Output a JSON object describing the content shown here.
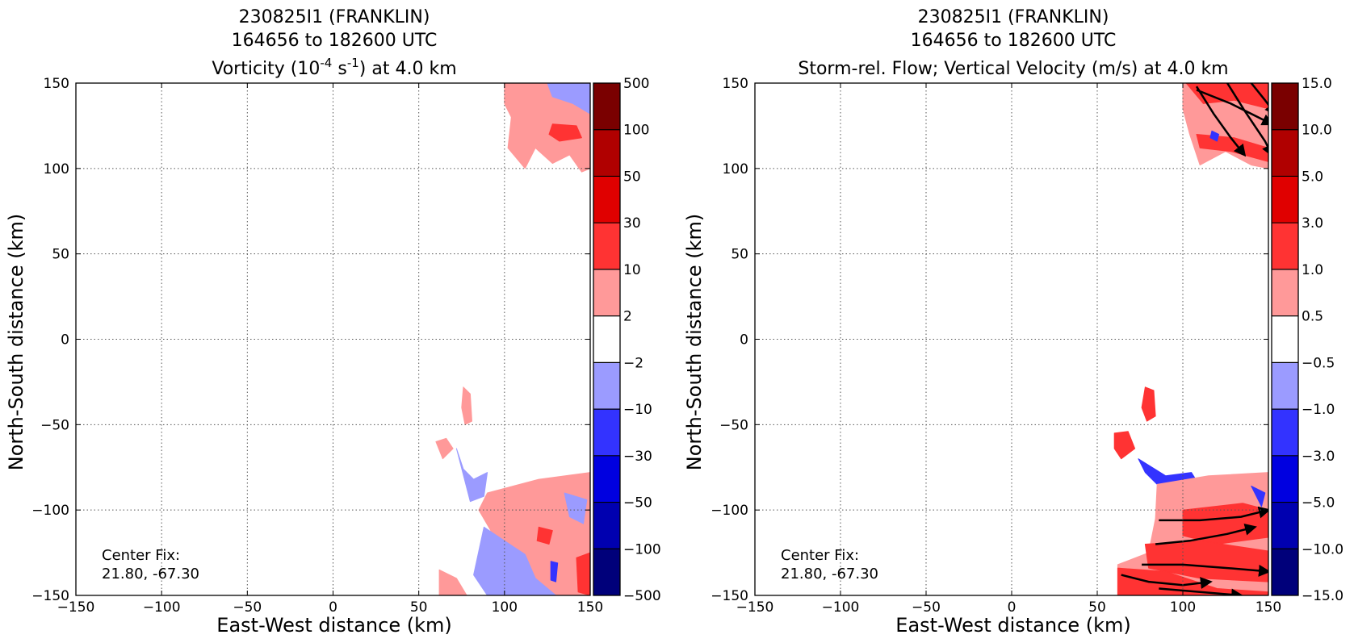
{
  "chart_data": [
    {
      "type": "heatmap",
      "title_lines": [
        "230825I1 (FRANKLIN)",
        "164656 to 182600 UTC"
      ],
      "title_var": {
        "pre": "Vorticity (10",
        "sup1": "-4",
        "mid": " s",
        "sup2": "-1",
        "post": ") at 4.0 km"
      },
      "xlabel": "East-West distance (km)",
      "ylabel": "North-South distance (km)",
      "xlim": [
        -150,
        150
      ],
      "ylim": [
        -150,
        150
      ],
      "xticks": [
        "−150",
        "−100",
        "−50",
        "0",
        "50",
        "100",
        "150"
      ],
      "yticks": [
        "150",
        "100",
        "50",
        "0",
        "−50",
        "−100",
        "−150"
      ],
      "grid": true,
      "annotation": [
        "Center Fix:",
        "21.80, -67.30"
      ],
      "colorbar_labels": [
        "500",
        "100",
        "50",
        "30",
        "10",
        "2",
        "−2",
        "−10",
        "−30",
        "−50",
        "−100",
        "−500"
      ],
      "colorbar_colors": [
        "#7a0000",
        "#b00000",
        "#e00000",
        "#ff3333",
        "#ff9999",
        "#ffffff",
        "#9b9bff",
        "#3333ff",
        "#0000e0",
        "#0000b0",
        "#00007a"
      ],
      "regions": [
        {
          "level": "pos_light",
          "pts": [
            [
              100,
              150
            ],
            [
              150,
              150
            ],
            [
              150,
              100
            ],
            [
              145,
              98
            ],
            [
              138,
              108
            ],
            [
              128,
              103
            ],
            [
              118,
              112
            ],
            [
              112,
              100
            ],
            [
              102,
              112
            ],
            [
              104,
              130
            ],
            [
              100,
              138
            ]
          ]
        },
        {
          "level": "neg_light",
          "pts": [
            [
              125,
              150
            ],
            [
              150,
              150
            ],
            [
              150,
              132
            ],
            [
              140,
              138
            ],
            [
              128,
              142
            ]
          ]
        },
        {
          "level": "pos_mid",
          "pts": [
            [
              128,
              126
            ],
            [
              142,
              125
            ],
            [
              145,
              118
            ],
            [
              132,
              116
            ],
            [
              126,
              120
            ]
          ]
        },
        {
          "level": "pos_light",
          "pts": [
            [
              76,
              -28
            ],
            [
              80,
              -32
            ],
            [
              81,
              -48
            ],
            [
              77,
              -50
            ],
            [
              75,
              -40
            ]
          ]
        },
        {
          "level": "pos_light",
          "pts": [
            [
              60,
              -60
            ],
            [
              66,
              -58
            ],
            [
              70,
              -64
            ],
            [
              64,
              -70
            ]
          ]
        },
        {
          "level": "pos_light",
          "pts": [
            [
              90,
              -90
            ],
            [
              120,
              -82
            ],
            [
              150,
              -78
            ],
            [
              150,
              -150
            ],
            [
              95,
              -150
            ],
            [
              88,
              -130
            ],
            [
              92,
              -112
            ],
            [
              85,
              -100
            ]
          ]
        },
        {
          "level": "neg_light",
          "pts": [
            [
              72,
              -64
            ],
            [
              76,
              -76
            ],
            [
              82,
              -82
            ],
            [
              90,
              -78
            ],
            [
              88,
              -92
            ],
            [
              80,
              -95
            ]
          ]
        },
        {
          "level": "neg_light",
          "pts": [
            [
              88,
              -110
            ],
            [
              100,
              -118
            ],
            [
              112,
              -126
            ],
            [
              118,
              -140
            ],
            [
              130,
              -150
            ],
            [
              90,
              -150
            ],
            [
              82,
              -138
            ]
          ]
        },
        {
          "level": "neg_light",
          "pts": [
            [
              135,
              -90
            ],
            [
              148,
              -94
            ],
            [
              146,
              -108
            ],
            [
              138,
              -104
            ]
          ]
        },
        {
          "level": "pos_light",
          "pts": [
            [
              62,
              -135
            ],
            [
              72,
              -140
            ],
            [
              78,
              -150
            ],
            [
              62,
              -150
            ]
          ]
        },
        {
          "level": "pos_mid",
          "pts": [
            [
              120,
              -110
            ],
            [
              128,
              -112
            ],
            [
              126,
              -120
            ],
            [
              119,
              -118
            ]
          ]
        },
        {
          "level": "pos_mid",
          "pts": [
            [
              142,
              -128
            ],
            [
              150,
              -125
            ],
            [
              150,
              -150
            ],
            [
              143,
              -148
            ]
          ]
        },
        {
          "level": "neg_mid",
          "pts": [
            [
              127,
              -130
            ],
            [
              131,
              -131
            ],
            [
              130,
              -142
            ],
            [
              127,
              -141
            ]
          ]
        }
      ]
    },
    {
      "type": "heatmap",
      "title_lines": [
        "230825I1 (FRANKLIN)",
        "164656 to 182600 UTC",
        "Storm-rel. Flow; Vertical Velocity (m/s) at 4.0 km"
      ],
      "xlabel": "East-West distance (km)",
      "ylabel": "North-South distance (km)",
      "xlim": [
        -150,
        150
      ],
      "ylim": [
        -150,
        150
      ],
      "xticks": [
        "−150",
        "−100",
        "−50",
        "0",
        "50",
        "100",
        "150"
      ],
      "yticks": [
        "150",
        "100",
        "50",
        "0",
        "−50",
        "−100",
        "−150"
      ],
      "grid": true,
      "annotation": [
        "Center Fix:",
        "21.80, -67.30"
      ],
      "colorbar_labels": [
        "15.0",
        "10.0",
        "5.0",
        "3.0",
        "1.0",
        "0.5",
        "−0.5",
        "−1.0",
        "−3.0",
        "−5.0",
        "−10.0",
        "−15.0"
      ],
      "colorbar_colors": [
        "#7a0000",
        "#b00000",
        "#e00000",
        "#ff3333",
        "#ff9999",
        "#ffffff",
        "#9b9bff",
        "#3333ff",
        "#0000e0",
        "#0000b0",
        "#00007a"
      ],
      "regions": [
        {
          "level": "pos_light",
          "pts": [
            [
              100,
              150
            ],
            [
              150,
              150
            ],
            [
              150,
              100
            ],
            [
              140,
              102
            ],
            [
              125,
              110
            ],
            [
              110,
              102
            ],
            [
              104,
              120
            ],
            [
              100,
              135
            ]
          ]
        },
        {
          "level": "pos_mid",
          "pts": [
            [
              102,
              150
            ],
            [
              150,
              150
            ],
            [
              150,
              135
            ],
            [
              130,
              140
            ],
            [
              112,
              138
            ]
          ]
        },
        {
          "level": "pos_mid",
          "pts": [
            [
              108,
              120
            ],
            [
              130,
              118
            ],
            [
              150,
              112
            ],
            [
              150,
              104
            ],
            [
              128,
              110
            ],
            [
              110,
              112
            ]
          ]
        },
        {
          "level": "neg_mid",
          "pts": [
            [
              117,
              122
            ],
            [
              121,
              120
            ],
            [
              120,
              116
            ],
            [
              116,
              118
            ]
          ]
        },
        {
          "level": "pos_mid",
          "pts": [
            [
              78,
              -28
            ],
            [
              83,
              -30
            ],
            [
              84,
              -45
            ],
            [
              79,
              -48
            ],
            [
              76,
              -40
            ]
          ]
        },
        {
          "level": "pos_mid",
          "pts": [
            [
              60,
              -55
            ],
            [
              68,
              -54
            ],
            [
              72,
              -64
            ],
            [
              64,
              -70
            ],
            [
              60,
              -64
            ]
          ]
        },
        {
          "level": "neg_mid",
          "pts": [
            [
              74,
              -70
            ],
            [
              90,
              -80
            ],
            [
              105,
              -78
            ],
            [
              110,
              -86
            ],
            [
              92,
              -92
            ],
            [
              78,
              -78
            ]
          ]
        },
        {
          "level": "pos_light",
          "pts": [
            [
              85,
              -85
            ],
            [
              115,
              -80
            ],
            [
              150,
              -78
            ],
            [
              150,
              -150
            ],
            [
              62,
              -150
            ],
            [
              62,
              -132
            ],
            [
              80,
              -125
            ],
            [
              84,
              -105
            ]
          ]
        },
        {
          "level": "pos_mid",
          "pts": [
            [
              100,
              -100
            ],
            [
              135,
              -96
            ],
            [
              150,
              -100
            ],
            [
              150,
              -116
            ],
            [
              120,
              -120
            ],
            [
              100,
              -115
            ]
          ]
        },
        {
          "level": "pos_mid",
          "pts": [
            [
              78,
              -120
            ],
            [
              110,
              -118
            ],
            [
              150,
              -124
            ],
            [
              150,
              -142
            ],
            [
              110,
              -140
            ],
            [
              80,
              -134
            ]
          ]
        },
        {
          "level": "pos_mid",
          "pts": [
            [
              62,
              -134
            ],
            [
              90,
              -136
            ],
            [
              120,
              -146
            ],
            [
              150,
              -148
            ],
            [
              150,
              -150
            ],
            [
              62,
              -150
            ]
          ]
        },
        {
          "level": "neg_mid",
          "pts": [
            [
              140,
              -86
            ],
            [
              148,
              -90
            ],
            [
              146,
              -98
            ]
          ]
        }
      ],
      "flow": [
        [
          [
            108,
            148
          ],
          [
            118,
            132
          ],
          [
            128,
            118
          ],
          [
            136,
            108
          ]
        ],
        [
          [
            126,
            150
          ],
          [
            136,
            134
          ],
          [
            148,
            116
          ],
          [
            152,
            108
          ]
        ],
        [
          [
            140,
            150
          ],
          [
            148,
            140
          ],
          [
            154,
            132
          ]
        ],
        [
          [
            108,
            146
          ],
          [
            128,
            138
          ],
          [
            152,
            126
          ]
        ],
        [
          [
            86,
            -106
          ],
          [
            110,
            -106
          ],
          [
            134,
            -104
          ],
          [
            150,
            -100
          ]
        ],
        [
          [
            84,
            -120
          ],
          [
            104,
            -118
          ],
          [
            126,
            -114
          ],
          [
            142,
            -110
          ]
        ],
        [
          [
            76,
            -132
          ],
          [
            100,
            -132
          ],
          [
            126,
            -134
          ],
          [
            150,
            -136
          ]
        ],
        [
          [
            64,
            -138
          ],
          [
            80,
            -142
          ],
          [
            100,
            -144
          ],
          [
            116,
            -142
          ]
        ],
        [
          [
            86,
            -146
          ],
          [
            110,
            -148
          ],
          [
            134,
            -150
          ]
        ]
      ]
    }
  ]
}
